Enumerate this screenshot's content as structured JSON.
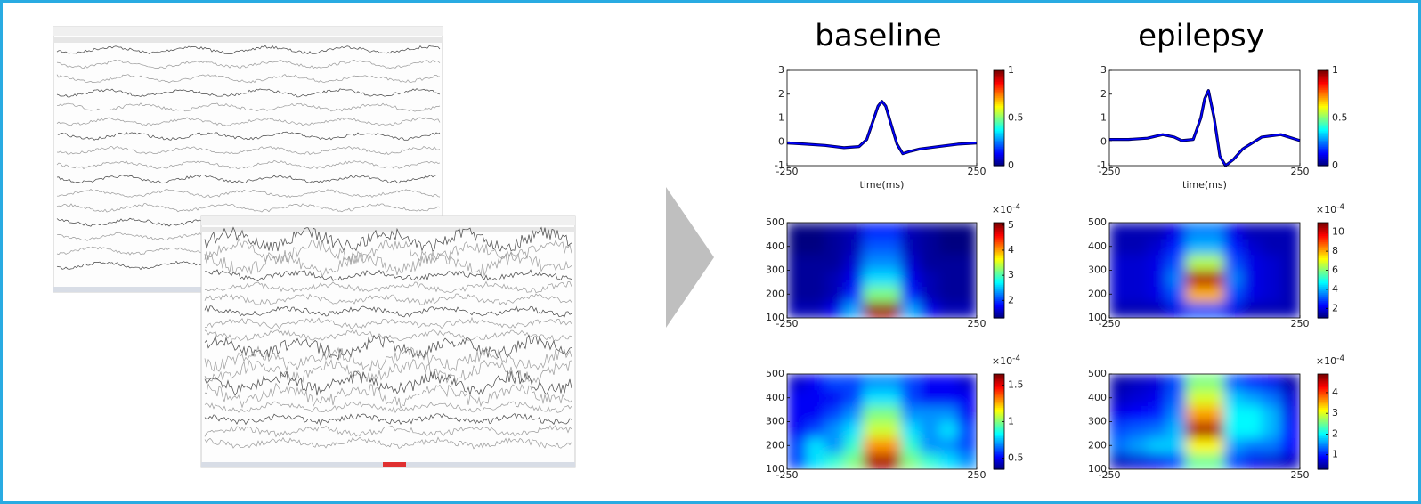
{
  "chart_data": [
    {
      "type": "line",
      "title": "baseline",
      "xlabel": "time(ms)",
      "color": "#0000ff",
      "x": [
        -250,
        -200,
        -150,
        -100,
        -60,
        -40,
        -25,
        -10,
        0,
        10,
        25,
        40,
        55,
        75,
        100,
        150,
        200,
        250
      ],
      "values": [
        -0.05,
        -0.1,
        -0.15,
        -0.25,
        -0.2,
        0.1,
        0.8,
        1.5,
        1.7,
        1.5,
        0.7,
        -0.1,
        -0.5,
        -0.4,
        -0.3,
        -0.2,
        -0.1,
        -0.05
      ],
      "xlim": [
        -250,
        250
      ],
      "ylim": [
        -1,
        3
      ],
      "xticks": [
        -250,
        250
      ],
      "yticks": [
        -1,
        0,
        1,
        2,
        3
      ],
      "colorbar": {
        "lim": [
          0,
          1
        ],
        "ticks": [
          0,
          0.5,
          1
        ]
      }
    },
    {
      "type": "line",
      "title": "epilepsy",
      "xlabel": "time(ms)",
      "color": "#0000ff",
      "x": [
        -250,
        -200,
        -150,
        -110,
        -80,
        -60,
        -30,
        -10,
        0,
        10,
        25,
        40,
        55,
        75,
        100,
        150,
        200,
        250
      ],
      "values": [
        0.1,
        0.1,
        0.15,
        0.3,
        0.2,
        0.05,
        0.1,
        1.0,
        1.8,
        2.15,
        1.0,
        -0.6,
        -1.0,
        -0.75,
        -0.3,
        0.2,
        0.3,
        0.05
      ],
      "xlim": [
        -250,
        250
      ],
      "ylim": [
        -1,
        3
      ],
      "xticks": [
        -250,
        250
      ],
      "yticks": [
        -1,
        0,
        1,
        2,
        3
      ],
      "colorbar": {
        "lim": [
          0,
          1
        ],
        "ticks": [
          0,
          0.5,
          1
        ]
      }
    },
    {
      "type": "heatmap",
      "xlim": [
        -250,
        250
      ],
      "ylim": [
        100,
        500
      ],
      "xticks": [
        -250,
        250
      ],
      "yticks": [
        100,
        200,
        300,
        400,
        500
      ],
      "values": [
        [
          1.5,
          1.5,
          1.7,
          2.4,
          5,
          5,
          2.4,
          1.7,
          1.5,
          1.5
        ],
        [
          1.4,
          1.4,
          1.5,
          1.9,
          3.2,
          3.2,
          1.9,
          1.5,
          1.4,
          1.4
        ],
        [
          1.4,
          1.4,
          1.5,
          1.7,
          2.6,
          2.6,
          1.7,
          1.5,
          1.4,
          1.4
        ],
        [
          1.4,
          1.4,
          1.4,
          1.6,
          2.3,
          2.3,
          1.6,
          1.4,
          1.4,
          1.4
        ],
        [
          1.3,
          1.3,
          1.4,
          1.5,
          2.1,
          2.1,
          1.5,
          1.4,
          1.3,
          1.3
        ],
        [
          1.3,
          1.3,
          1.4,
          1.5,
          1.9,
          1.9,
          1.5,
          1.4,
          1.3,
          1.3
        ]
      ],
      "colorbar": {
        "lim": [
          1.3,
          5.1
        ],
        "ticks": [
          2,
          3,
          4,
          5
        ],
        "multiplier_base": "×10",
        "multiplier_exp": "-4"
      }
    },
    {
      "type": "heatmap",
      "xlim": [
        -250,
        250
      ],
      "ylim": [
        100,
        500
      ],
      "xticks": [
        -250,
        250
      ],
      "yticks": [
        100,
        200,
        300,
        400,
        500
      ],
      "values": [
        [
          1.5,
          1.5,
          1.5,
          2,
          3,
          3,
          2,
          1.5,
          1.5,
          1.5
        ],
        [
          1.8,
          1.8,
          2,
          3,
          8,
          8,
          3,
          2,
          1.8,
          1.5
        ],
        [
          1.8,
          1.8,
          2,
          3.5,
          10.5,
          10.5,
          3.5,
          2,
          1.8,
          1.5
        ],
        [
          1.8,
          1.8,
          2,
          3,
          6.5,
          6.5,
          3,
          2,
          1.8,
          1.5
        ],
        [
          1.5,
          1.5,
          1.8,
          2.5,
          4,
          4,
          2.5,
          1.8,
          1.5,
          1.5
        ],
        [
          1.5,
          1.5,
          1.5,
          2,
          3.5,
          3.5,
          2,
          1.5,
          1.5,
          1.5
        ]
      ],
      "colorbar": {
        "lim": [
          1,
          11
        ],
        "ticks": [
          2,
          4,
          6,
          8,
          10
        ],
        "multiplier_base": "×10",
        "multiplier_exp": "-4"
      }
    },
    {
      "type": "heatmap",
      "xlim": [
        -250,
        250
      ],
      "ylim": [
        100,
        500
      ],
      "xticks": [
        -250,
        250
      ],
      "yticks": [
        100,
        200,
        300,
        400,
        500
      ],
      "values": [
        [
          0.6,
          0.8,
          0.9,
          1.0,
          1.6,
          1.6,
          1.0,
          0.9,
          0.8,
          0.7
        ],
        [
          0.6,
          0.8,
          0.7,
          0.9,
          1.3,
          1.3,
          0.9,
          0.7,
          0.7,
          0.6
        ],
        [
          0.5,
          0.6,
          0.7,
          0.8,
          1.1,
          1.1,
          0.8,
          0.7,
          0.8,
          0.6
        ],
        [
          0.5,
          0.5,
          0.6,
          0.7,
          1.0,
          1.0,
          0.7,
          0.7,
          0.7,
          0.5
        ],
        [
          0.5,
          0.5,
          0.5,
          0.6,
          0.8,
          0.8,
          0.6,
          0.5,
          0.5,
          0.5
        ],
        [
          0.45,
          0.5,
          0.6,
          0.6,
          0.7,
          0.7,
          0.6,
          0.5,
          0.5,
          0.45
        ]
      ],
      "colorbar": {
        "lim": [
          0.35,
          1.65
        ],
        "ticks": [
          0.5,
          1,
          1.5
        ],
        "multiplier_base": "×10",
        "multiplier_exp": "-4"
      }
    },
    {
      "type": "heatmap",
      "xlim": [
        -250,
        250
      ],
      "ylim": [
        100,
        500
      ],
      "xticks": [
        -250,
        250
      ],
      "yticks": [
        100,
        200,
        300,
        400,
        500
      ],
      "values": [
        [
          0.6,
          0.7,
          0.8,
          1.2,
          2.5,
          2.5,
          1.2,
          0.8,
          0.7,
          0.6
        ],
        [
          1.4,
          1.6,
          1.8,
          1.8,
          3.2,
          3.2,
          1.6,
          1.4,
          1.4,
          0.9
        ],
        [
          1.2,
          1.3,
          1.4,
          1.7,
          4.7,
          4.7,
          2.0,
          2.0,
          1.7,
          0.9
        ],
        [
          0.8,
          0.9,
          1.0,
          1.5,
          3.6,
          3.6,
          2.0,
          2.0,
          1.7,
          0.8
        ],
        [
          0.6,
          0.7,
          0.8,
          1.3,
          3.0,
          3.0,
          1.8,
          1.6,
          1.4,
          0.7
        ],
        [
          0.5,
          0.6,
          0.7,
          1.2,
          2.6,
          2.6,
          1.3,
          1.0,
          0.8,
          0.5
        ]
      ],
      "colorbar": {
        "lim": [
          0.3,
          4.9
        ],
        "ticks": [
          1,
          2,
          3,
          4
        ],
        "multiplier_base": "×10",
        "multiplier_exp": "-4"
      }
    }
  ]
}
